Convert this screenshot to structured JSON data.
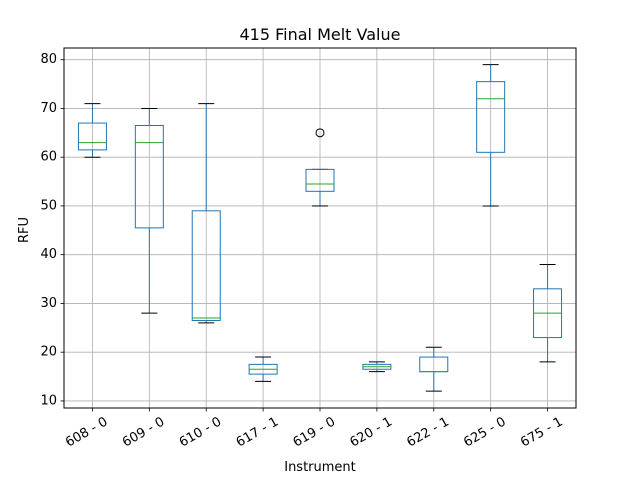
{
  "chart_data": {
    "type": "box",
    "title": "415 Final Melt Value",
    "xlabel": "Instrument",
    "ylabel": "RFU",
    "ylim": [
      8.55,
      82.4
    ],
    "yticks": [
      10,
      20,
      30,
      40,
      50,
      60,
      70,
      80
    ],
    "grid": true,
    "categories": [
      "608 - 0",
      "609 - 0",
      "610 - 0",
      "617 - 1",
      "619 - 0",
      "620 - 1",
      "622 - 1",
      "625 - 0",
      "675 - 1"
    ],
    "boxes": [
      {
        "whisker_low": 60,
        "q1": 61.5,
        "median": 63,
        "q3": 67,
        "whisker_high": 71,
        "outliers": []
      },
      {
        "whisker_low": 28,
        "q1": 45.5,
        "median": 63,
        "q3": 66.5,
        "whisker_high": 70,
        "outliers": []
      },
      {
        "whisker_low": 26,
        "q1": 26.5,
        "median": 27,
        "q3": 49,
        "whisker_high": 71,
        "outliers": []
      },
      {
        "whisker_low": 14,
        "q1": 15.5,
        "median": 16.5,
        "q3": 17.5,
        "whisker_high": 19,
        "outliers": []
      },
      {
        "whisker_low": 50,
        "q1": 53,
        "median": 54.5,
        "q3": 57.5,
        "whisker_high": 57.5,
        "outliers": [
          65
        ]
      },
      {
        "whisker_low": 16,
        "q1": 16.5,
        "median": 17,
        "q3": 17.5,
        "whisker_high": 18,
        "outliers": []
      },
      {
        "whisker_low": 12,
        "q1": 16,
        "median": 16,
        "q3": 19,
        "whisker_high": 21,
        "outliers": []
      },
      {
        "whisker_low": 50,
        "q1": 61,
        "median": 72,
        "q3": 75.5,
        "whisker_high": 79,
        "outliers": []
      },
      {
        "whisker_low": 18,
        "q1": 23,
        "median": 28,
        "q3": 33,
        "whisker_high": 38,
        "outliers": []
      }
    ],
    "colors": {
      "box": "#1f77b4",
      "median": "#2ca02c",
      "whisker": "#000000",
      "grid": "#b0b0b0",
      "axes": "#000000"
    }
  }
}
